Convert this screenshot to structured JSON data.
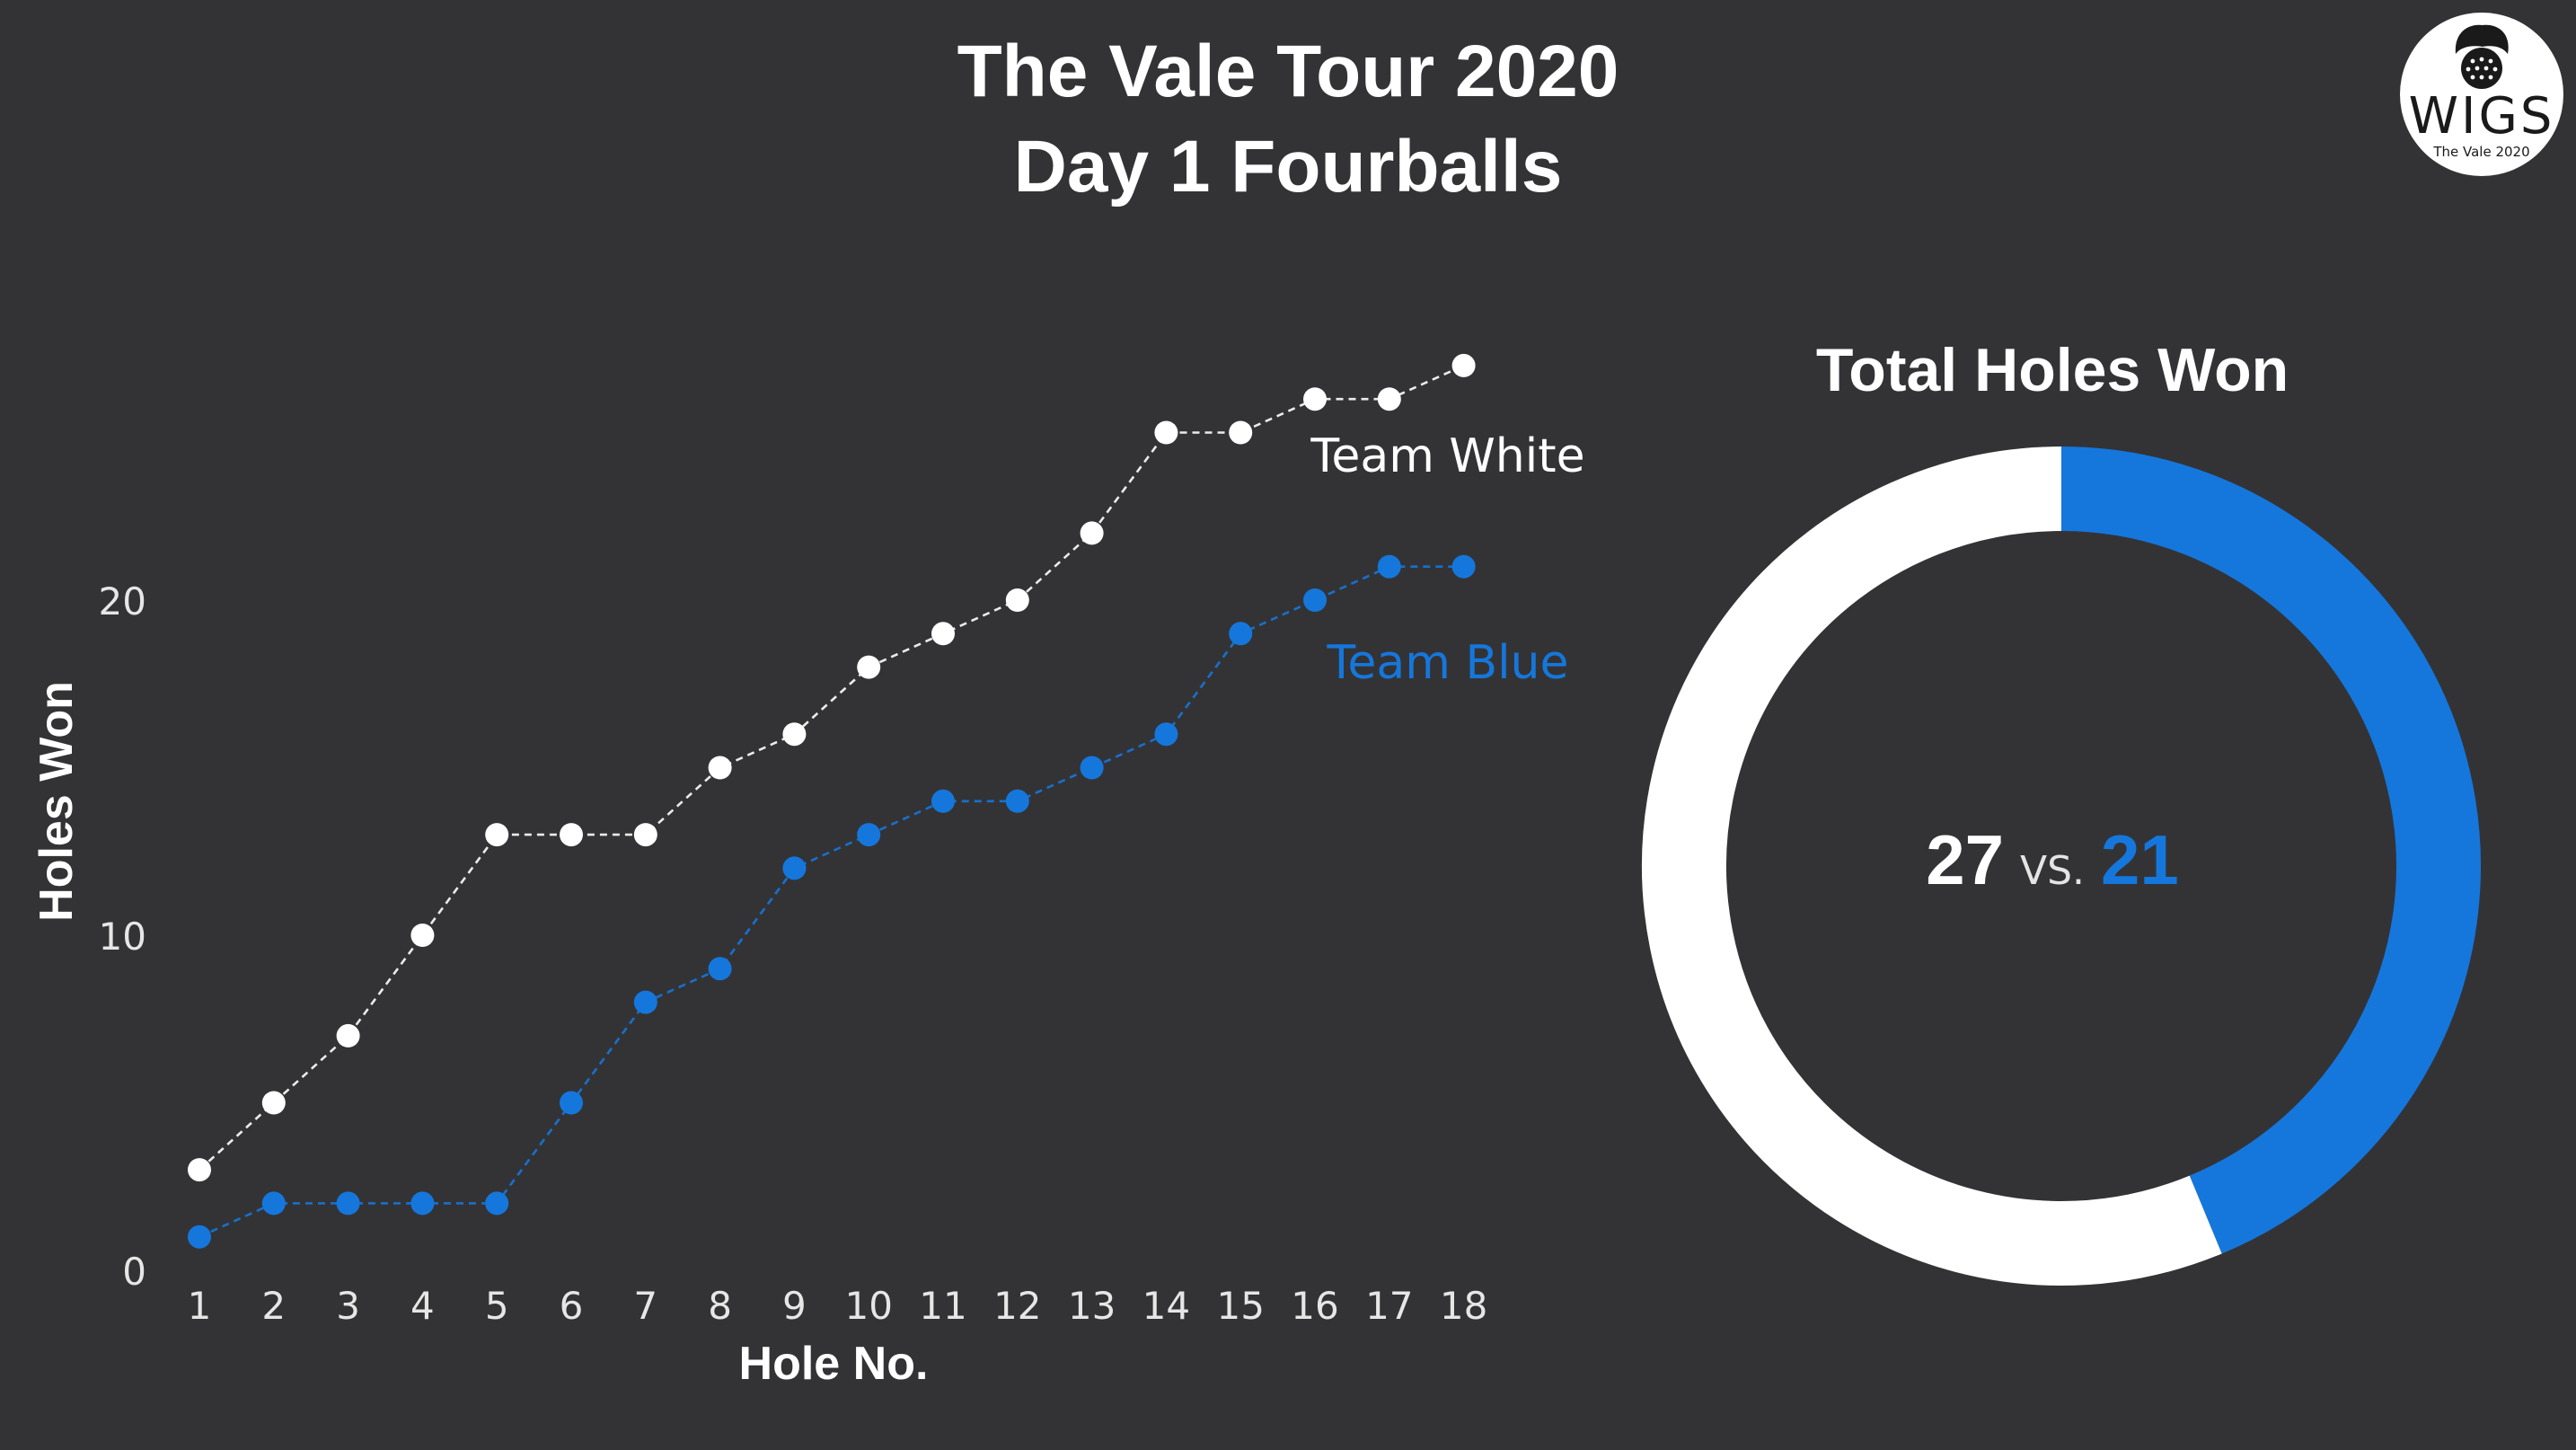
{
  "header": {
    "title_line_1": "The Vale Tour 2020",
    "title_line_2": "Day 1 Fourballs"
  },
  "logo": {
    "icon": "golfer-head-icon",
    "word": "WIGS",
    "subtitle": "The Vale 2020"
  },
  "colors": {
    "background": "#333336",
    "team_white": "#ffffff",
    "team_blue": "#1577dc",
    "axis_text": "#e6e6e6"
  },
  "chart_data": [
    {
      "type": "line",
      "title": "",
      "xlabel": "Hole No.",
      "ylabel": "Holes Won",
      "x": [
        1,
        2,
        3,
        4,
        5,
        6,
        7,
        8,
        9,
        10,
        11,
        12,
        13,
        14,
        15,
        16,
        17,
        18
      ],
      "y_ticks": [
        0,
        10,
        20
      ],
      "ylim": [
        0,
        27
      ],
      "grid": false,
      "line_style": "dashed",
      "series": [
        {
          "name": "Team White",
          "color": "#ffffff",
          "values": [
            3,
            5,
            7,
            10,
            13,
            13,
            13,
            15,
            16,
            18,
            19,
            20,
            22,
            25,
            25,
            26,
            26,
            27
          ]
        },
        {
          "name": "Team Blue",
          "color": "#1577dc",
          "values": [
            1,
            2,
            2,
            2,
            2,
            5,
            8,
            9,
            12,
            13,
            14,
            14,
            15,
            16,
            19,
            20,
            21,
            21
          ]
        }
      ]
    },
    {
      "type": "pie",
      "style": "donut",
      "title": "Total Holes Won",
      "slices": [
        {
          "team": "white",
          "value": 27,
          "color": "#ffffff"
        },
        {
          "team": "blue",
          "value": 21,
          "color": "#1577dc"
        }
      ],
      "center_label": {
        "white_total": "27",
        "vs": "VS.",
        "blue_total": "21"
      }
    }
  ]
}
